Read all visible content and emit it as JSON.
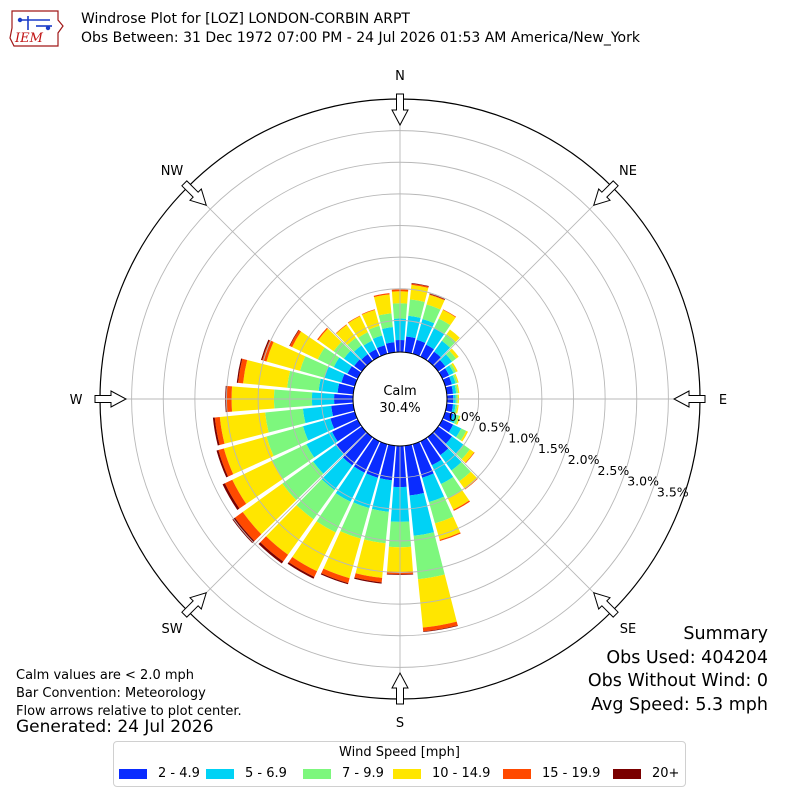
{
  "header": {
    "logo_text": "IEM",
    "title": "Windrose Plot for [LOZ] LONDON-CORBIN ARPT",
    "subtitle": "Obs Between: 31 Dec 1972 07:00 PM - 24 Jul 2026 01:53 AM America/New_York"
  },
  "notes": {
    "calm_note": "Calm values are < 2.0 mph",
    "bar_convention": "Bar Convention: Meteorology",
    "flow_note": "Flow arrows relative to plot center.",
    "generated": "Generated: 24 Jul 2026"
  },
  "summary": {
    "heading": "Summary",
    "obs_used": "Obs Used: 404204",
    "obs_without_wind": "Obs Without Wind: 0",
    "avg_speed": "Avg Speed: 5.3 mph"
  },
  "legend": {
    "title": "Wind Speed [mph]"
  },
  "chart_data": {
    "type": "windrose",
    "calm": {
      "label": "Calm",
      "value": "30.4%"
    },
    "compass_labels": [
      "N",
      "NE",
      "E",
      "SE",
      "S",
      "SW",
      "W",
      "NW"
    ],
    "radial_ticks": [
      "0.0%",
      "0.5%",
      "1.0%",
      "1.5%",
      "2.0%",
      "2.5%",
      "3.0%",
      "3.5%"
    ],
    "radial_max": 4.0,
    "bins": [
      {
        "label": "2 - 4.9",
        "color": "#0a2cff"
      },
      {
        "label": "5 - 6.9",
        "color": "#00d2f5"
      },
      {
        "label": "7 - 9.9",
        "color": "#7df77d"
      },
      {
        "label": "10 - 14.9",
        "color": "#ffe600"
      },
      {
        "label": "15 - 19.9",
        "color": "#ff4a00"
      },
      {
        "label": "20+",
        "color": "#7a0000"
      }
    ],
    "directions": [
      0,
      10,
      20,
      30,
      40,
      50,
      60,
      70,
      80,
      90,
      100,
      110,
      120,
      130,
      140,
      150,
      160,
      170,
      180,
      190,
      200,
      210,
      220,
      230,
      240,
      250,
      260,
      270,
      280,
      290,
      300,
      310,
      320,
      330,
      340,
      350
    ],
    "cumulative": [
      [
        0.19,
        0.53,
        0.77,
        0.96,
        0.99,
        0.99
      ],
      [
        0.25,
        0.58,
        0.84,
        1.07,
        1.09,
        1.1
      ],
      [
        0.23,
        0.57,
        0.81,
        0.97,
        0.98,
        0.99
      ],
      [
        0.21,
        0.5,
        0.67,
        0.82,
        0.83,
        0.83
      ],
      [
        0.18,
        0.39,
        0.52,
        0.61,
        0.61,
        0.61
      ],
      [
        0.14,
        0.27,
        0.35,
        0.4,
        0.4,
        0.4
      ],
      [
        0.12,
        0.2,
        0.24,
        0.27,
        0.27,
        0.27
      ],
      [
        0.11,
        0.17,
        0.2,
        0.22,
        0.22,
        0.22
      ],
      [
        0.1,
        0.15,
        0.18,
        0.2,
        0.2,
        0.2
      ],
      [
        0.1,
        0.14,
        0.17,
        0.19,
        0.19,
        0.19
      ],
      [
        0.1,
        0.14,
        0.17,
        0.19,
        0.19,
        0.19
      ],
      [
        0.13,
        0.19,
        0.23,
        0.25,
        0.25,
        0.25
      ],
      [
        0.19,
        0.33,
        0.42,
        0.45,
        0.45,
        0.45
      ],
      [
        0.27,
        0.49,
        0.62,
        0.7,
        0.71,
        0.71
      ],
      [
        0.35,
        0.65,
        0.86,
        1.01,
        1.02,
        1.02
      ],
      [
        0.42,
        0.75,
        1.0,
        1.2,
        1.22,
        1.22
      ],
      [
        0.55,
        0.95,
        1.3,
        1.57,
        1.59,
        1.59
      ],
      [
        0.79,
        1.43,
        2.12,
        2.89,
        2.95,
        2.96
      ],
      [
        0.65,
        1.2,
        1.6,
        1.99,
        2.03,
        2.04
      ],
      [
        0.55,
        1.05,
        1.55,
        2.1,
        2.17,
        2.19
      ],
      [
        0.55,
        1.05,
        1.55,
        2.2,
        2.28,
        2.3
      ],
      [
        0.55,
        1.06,
        1.6,
        2.28,
        2.38,
        2.41
      ],
      [
        0.55,
        1.03,
        1.6,
        2.29,
        2.42,
        2.46
      ],
      [
        0.5,
        0.95,
        1.55,
        2.32,
        2.47,
        2.52
      ],
      [
        0.45,
        0.9,
        1.5,
        2.2,
        2.33,
        2.37
      ],
      [
        0.4,
        0.85,
        1.45,
        2.15,
        2.24,
        2.27
      ],
      [
        0.35,
        0.8,
        1.4,
        2.12,
        2.2,
        2.23
      ],
      [
        0.3,
        0.65,
        1.25,
        1.92,
        2.0,
        2.02
      ],
      [
        0.25,
        0.55,
        1.05,
        1.75,
        1.83,
        1.85
      ],
      [
        0.22,
        0.5,
        0.9,
        1.45,
        1.52,
        1.54
      ],
      [
        0.18,
        0.42,
        0.7,
        1.15,
        1.19,
        1.2
      ],
      [
        0.15,
        0.35,
        0.55,
        0.85,
        0.87,
        0.87
      ],
      [
        0.13,
        0.3,
        0.45,
        0.7,
        0.71,
        0.71
      ],
      [
        0.13,
        0.28,
        0.43,
        0.71,
        0.72,
        0.72
      ],
      [
        0.14,
        0.3,
        0.46,
        0.72,
        0.73,
        0.73
      ],
      [
        0.16,
        0.4,
        0.62,
        0.92,
        0.94,
        0.94
      ]
    ]
  }
}
